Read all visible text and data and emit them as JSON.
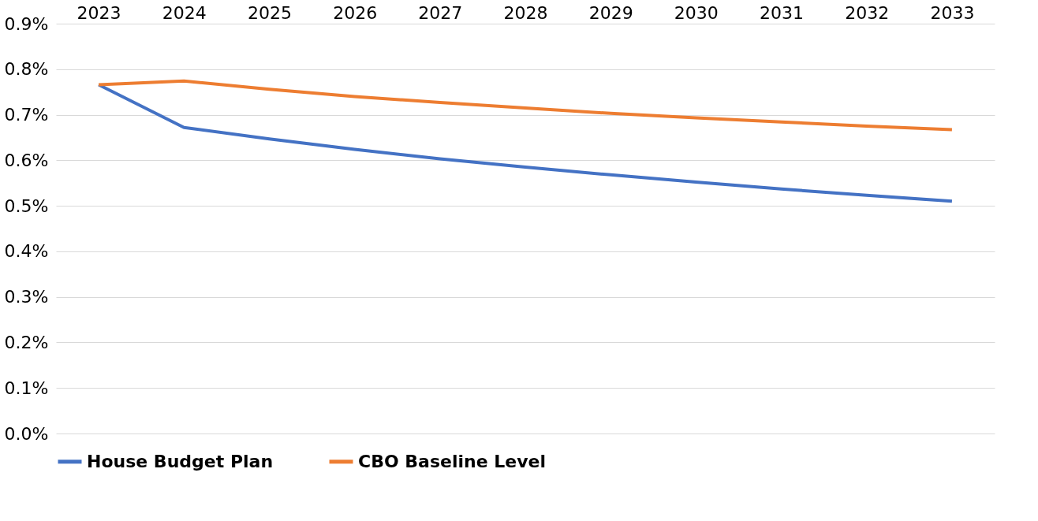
{
  "chart_data": {
    "type": "line",
    "categories": [
      "2023",
      "2024",
      "2025",
      "2026",
      "2027",
      "2028",
      "2029",
      "2030",
      "2031",
      "2032",
      "2033"
    ],
    "series": [
      {
        "name": "House Budget Plan",
        "color": "#4472c4",
        "values": [
          0.766,
          0.672,
          0.647,
          0.624,
          0.603,
          0.585,
          0.568,
          0.552,
          0.537,
          0.523,
          0.51
        ]
      },
      {
        "name": "CBO Baseline Level",
        "color": "#ed7d31",
        "values": [
          0.766,
          0.774,
          0.756,
          0.74,
          0.727,
          0.715,
          0.703,
          0.693,
          0.684,
          0.675,
          0.667
        ]
      }
    ],
    "ylim": [
      0,
      0.9
    ],
    "yticks": [
      {
        "value": 0,
        "label": "0.0%"
      },
      {
        "value": 0.1,
        "label": "0.1%"
      },
      {
        "value": 0.2,
        "label": "0.2%"
      },
      {
        "value": 0.3,
        "label": "0.3%"
      },
      {
        "value": 0.4,
        "label": "0.4%"
      },
      {
        "value": 0.5,
        "label": "0.5%"
      },
      {
        "value": 0.6,
        "label": "0.6%"
      },
      {
        "value": 0.7,
        "label": "0.7%"
      },
      {
        "value": 0.8,
        "label": "0.8%"
      },
      {
        "value": 0.9,
        "label": "0.9%"
      }
    ],
    "grid": "y",
    "legend": "bottom",
    "marker": "none",
    "line_style": "solid"
  }
}
